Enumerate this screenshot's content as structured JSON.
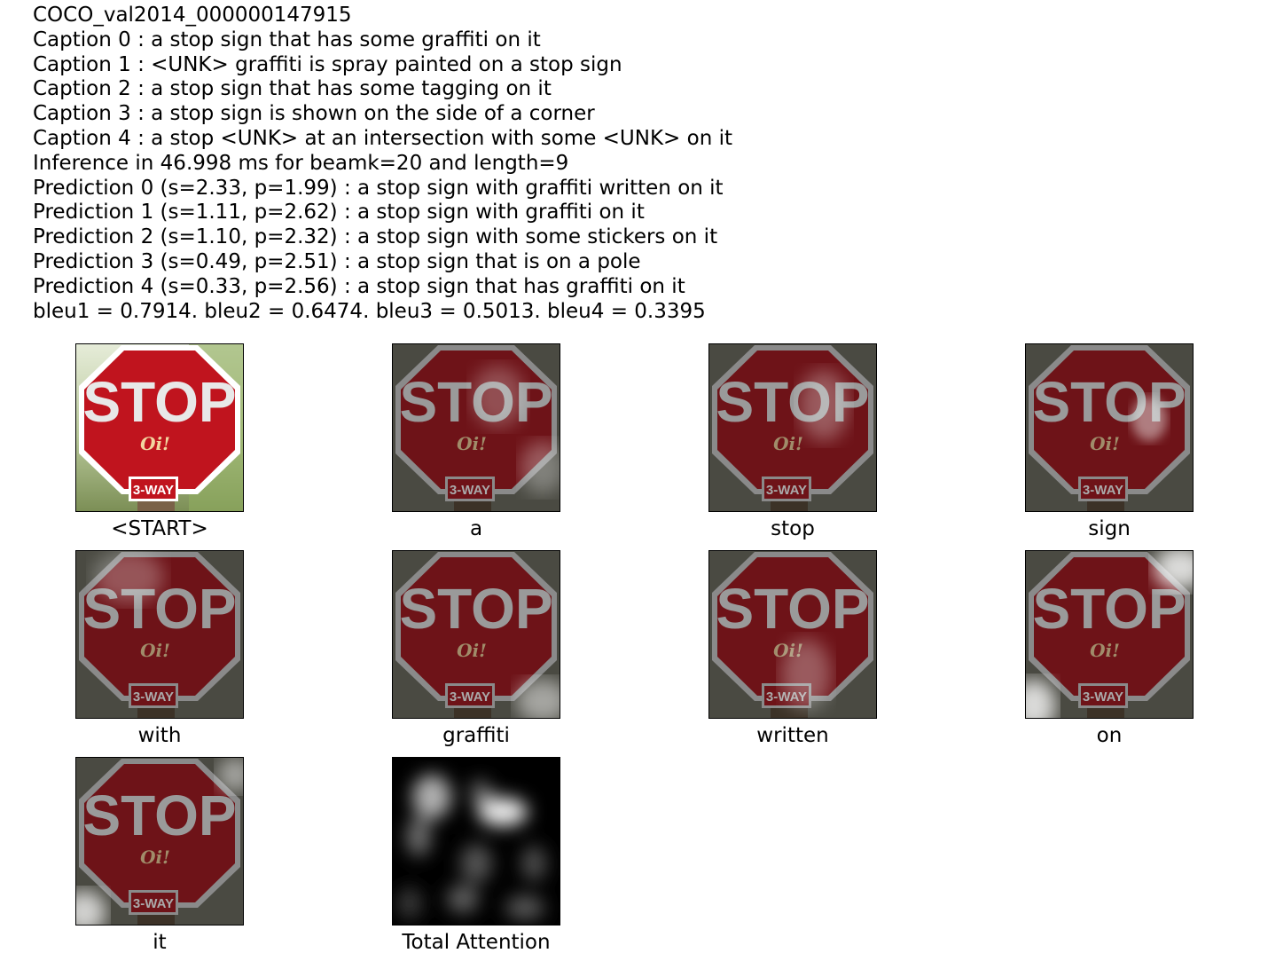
{
  "header": {
    "image_id": "COCO_val2014_000000147915",
    "captions": [
      "Caption 0 : a stop sign that has some graffiti on it",
      "Caption 1 : <UNK> graffiti is spray painted on a stop sign",
      "Caption 2 : a stop sign that has some tagging on it",
      "Caption 3 : a stop sign is shown on the side of a corner",
      "Caption 4 : a stop <UNK> at an intersection with some <UNK> on it"
    ],
    "inference": "Inference in 46.998 ms for beamk=20 and length=9",
    "predictions": [
      "Prediction 0 (s=2.33, p=1.99) : a stop sign with graffiti written on it",
      "Prediction 1 (s=1.11, p=2.62) : a stop sign with graffiti on it",
      "Prediction 2 (s=1.10, p=2.32) : a stop sign with some stickers on it",
      "Prediction 3 (s=0.49, p=2.51) : a stop sign that is on a pole",
      "Prediction 4 (s=0.33, p=2.56) : a stop sign that has graffiti on it"
    ],
    "bleu": "bleu1 = 0.7914. bleu2 = 0.6474. bleu3 = 0.5013. bleu4 = 0.3395"
  },
  "sign": {
    "stop_text": "STOP",
    "graffiti_text": "Oi!",
    "small_sign_text": "3-WAY",
    "red": "#c0141e",
    "dark_red": "#6e1318"
  },
  "panels": [
    {
      "word": "<START>"
    },
    {
      "word": "a"
    },
    {
      "word": "stop"
    },
    {
      "word": "sign"
    },
    {
      "word": "with"
    },
    {
      "word": "graffiti"
    },
    {
      "word": "written"
    },
    {
      "word": "on"
    },
    {
      "word": "it"
    },
    {
      "word": "Total Attention"
    }
  ]
}
